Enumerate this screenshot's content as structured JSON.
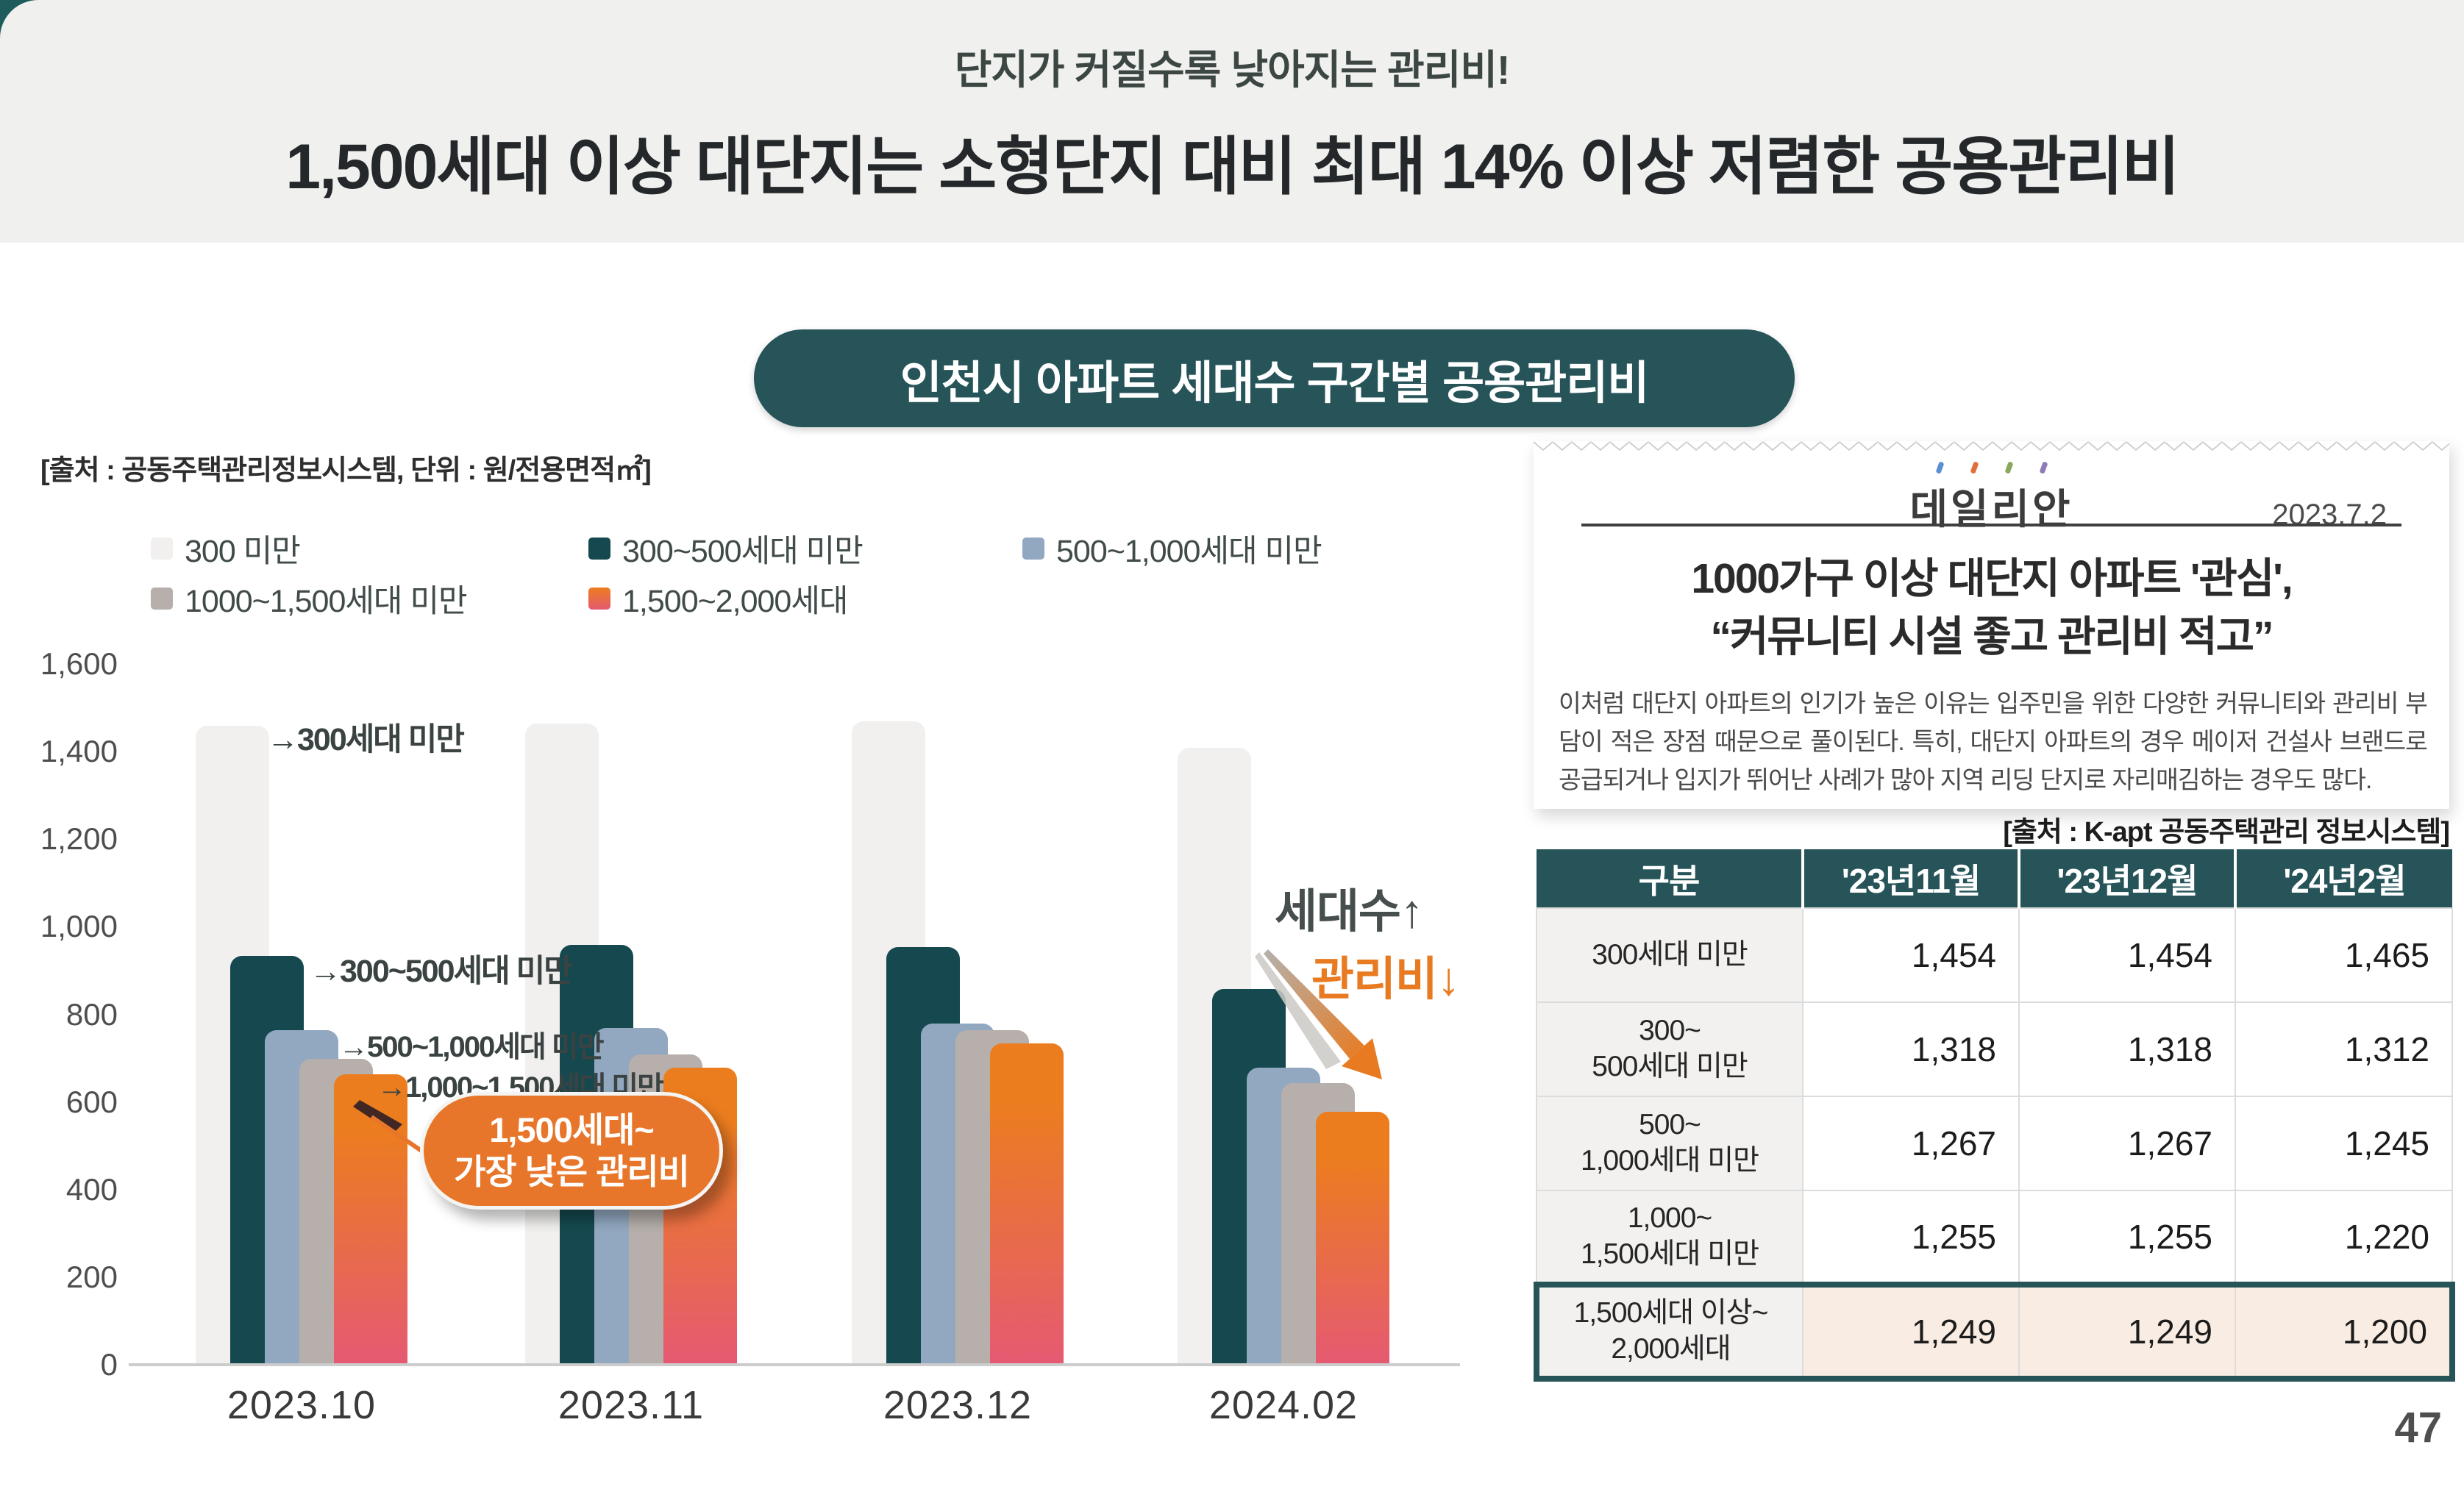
{
  "page_number": "47",
  "header": {
    "subtitle": "단지가 커질수록 낮아지는 관리비!",
    "title": "1,500세대 이상 대단지는 소형단지 대비 최대 14% 이상 저렴한 공용관리비"
  },
  "chart": {
    "source_note": "[출처 : 공동주택관리정보시스템, 단위 : 원/전용면적㎡]"
  },
  "chart_data": {
    "type": "bar",
    "title": "인천시 아파트 세대수 구간별 공용관리비",
    "unit": "원/전용면적㎡",
    "categories": [
      "2023.10",
      "2023.11",
      "2023.12",
      "2024.02"
    ],
    "series": [
      {
        "name": "300 미만",
        "color": "#f1f0ee",
        "values": [
          1455,
          1460,
          1465,
          1405
        ]
      },
      {
        "name": "300~500세대 미만",
        "color": "#15494f",
        "values": [
          930,
          955,
          950,
          855
        ]
      },
      {
        "name": "500~1,000세대 미만",
        "color": "#92a8c1",
        "values": [
          760,
          765,
          775,
          675
        ]
      },
      {
        "name": "1000~1,500세대 미만",
        "color": "#b6afab",
        "values": [
          695,
          705,
          760,
          640
        ]
      },
      {
        "name": "1,500~2,000세대",
        "color": "#ec7d1e",
        "color2": "#e55a72",
        "values": [
          660,
          675,
          730,
          575
        ]
      }
    ],
    "ylim": [
      0,
      1600
    ],
    "yticks": [
      {
        "value": 0,
        "label": "0"
      },
      {
        "value": 200,
        "label": "200"
      },
      {
        "value": 400,
        "label": "400"
      },
      {
        "value": 600,
        "label": "600"
      },
      {
        "value": 800,
        "label": "800"
      },
      {
        "value": 1000,
        "label": "1,000"
      },
      {
        "value": 1200,
        "label": "1,200"
      },
      {
        "value": 1400,
        "label": "1,400"
      },
      {
        "value": 1600,
        "label": "1,600"
      }
    ],
    "grid": false,
    "legend_position": "top",
    "annotations": {
      "bar1": "→300세대 미만",
      "bar2": "→300~500세대 미만",
      "bar3": "→500~1,000세대 미만",
      "bar4": "→1,000~1,500세대 미만",
      "households_up": "세대수↑",
      "fee_down": "관리비↓",
      "callout_line1": "1,500세대~",
      "callout_line2": "가장 낮은 관리비"
    }
  },
  "article": {
    "logo": "데일리안",
    "date": "2023.7.2",
    "headline_line1": "1000가구 이상 대단지 아파트 '관심',",
    "headline_line2": "“커뮤니티 시설 좋고 관리비 적고”",
    "body": "이처럼 대단지 아파트의 인기가 높은 이유는 입주민을 위한 다양한 커뮤니티와 관리비 부담이 적은 장점 때문으로 풀이된다. 특히, 대단지 아파트의 경우 메이저 건설사 브랜드로 공급되거나 입지가 뛰어난 사례가 많아 지역 리딩 단지로 자리매김하는 경우도 많다."
  },
  "table": {
    "source_note": "[출처 : K-apt 공동주택관리 정보시스템]",
    "columns": [
      "구분",
      "'23년11월",
      "'23년12월",
      "'24년2월"
    ],
    "rows": [
      {
        "label": "300세대 미만",
        "values": [
          "1,454",
          "1,454",
          "1,465"
        ],
        "highlight": false
      },
      {
        "label": "300~\n500세대 미만",
        "values": [
          "1,318",
          "1,318",
          "1,312"
        ],
        "highlight": false
      },
      {
        "label": "500~\n1,000세대 미만",
        "values": [
          "1,267",
          "1,267",
          "1,245"
        ],
        "highlight": false
      },
      {
        "label": "1,000~\n1,500세대 미만",
        "values": [
          "1,255",
          "1,255",
          "1,220"
        ],
        "highlight": false
      },
      {
        "label": "1,500세대 이상~\n2,000세대",
        "values": [
          "1,249",
          "1,249",
          "1,200"
        ],
        "highlight": true
      }
    ]
  },
  "colors": {
    "teal": "#265459",
    "orange": "#e87b21",
    "header_bg": "#f0f0ee",
    "highlight_row_bg": "#f9ece2"
  }
}
